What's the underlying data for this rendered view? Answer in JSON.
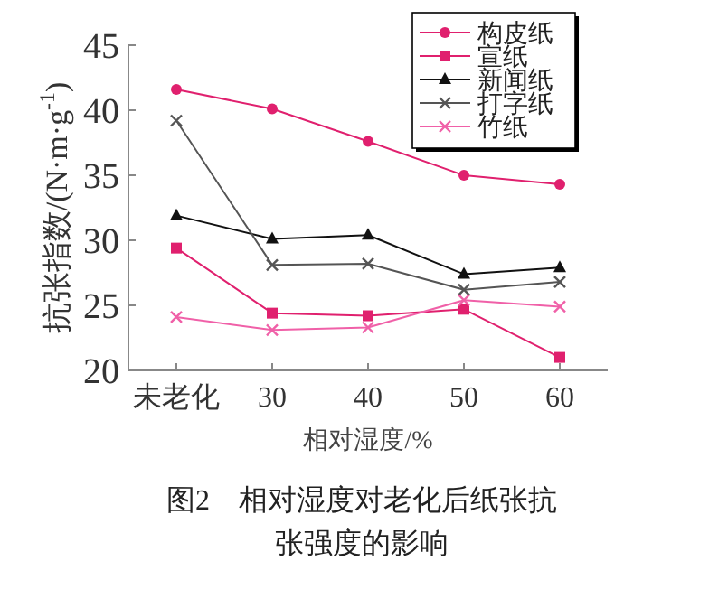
{
  "chart_data": {
    "type": "line",
    "xlabel": "相对湿度/%",
    "ylabel": "抗张指数/(N·m·g$^{-1}$)",
    "categories": [
      "未老化",
      "30",
      "40",
      "50",
      "60"
    ],
    "ylim": [
      20,
      45
    ],
    "yticks": [
      20,
      25,
      30,
      35,
      40,
      45
    ],
    "legend": "top right",
    "grid": false,
    "series": [
      {
        "name": "构皮纸",
        "color": "#e0206e",
        "marker": "circle",
        "values": [
          41.6,
          40.1,
          37.6,
          35.0,
          34.3
        ]
      },
      {
        "name": "宣纸",
        "color": "#e0206e",
        "marker": "square",
        "values": [
          29.4,
          24.4,
          24.2,
          24.7,
          21.0
        ]
      },
      {
        "name": "新闻纸",
        "color": "#111111",
        "marker": "triangle",
        "values": [
          31.9,
          30.1,
          30.4,
          27.4,
          27.9
        ]
      },
      {
        "name": "打字纸",
        "color": "#555555",
        "marker": "cross",
        "values": [
          39.2,
          28.1,
          28.2,
          26.2,
          26.8
        ]
      },
      {
        "name": "竹纸",
        "color": "#f060a8",
        "marker": "cross",
        "values": [
          24.1,
          23.1,
          23.3,
          25.4,
          24.9
        ]
      }
    ],
    "annotations": [
      "图2　相对湿度对老化后纸张抗张强度的影响"
    ]
  }
}
